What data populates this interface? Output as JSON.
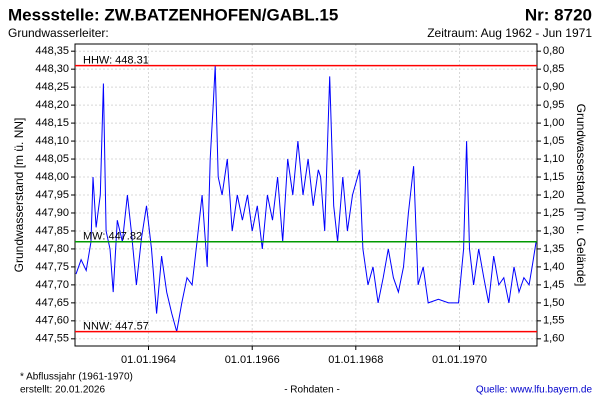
{
  "chart_data": {
    "type": "line",
    "title": "Messstelle: ZW.BATZENHOFEN/GABL.15",
    "number": "Nr: 8720",
    "subtitle": "Grundwasserleiter:",
    "period": "Zeitraum: Aug 1962 - Jun 1971",
    "ylabel": "Grundwasserstand [m ü. NN]",
    "y2label": "Grundwasserstand [m u. Gelände]",
    "footnote": "* Abflussjahr (1961-1970)",
    "created": "erstellt:  20.01.2026",
    "datatype": "- Rohdaten -",
    "source": "Quelle: www.lfu.bayern.de",
    "grid": true,
    "xlim": [
      "1962-08-01",
      "1971-07-01"
    ],
    "xticks": [
      {
        "value": "1964-01-01",
        "label": "01.01.1964"
      },
      {
        "value": "1966-01-01",
        "label": "01.01.1966"
      },
      {
        "value": "1968-01-01",
        "label": "01.01.1968"
      },
      {
        "value": "1970-01-01",
        "label": "01.01.1970"
      }
    ],
    "ylim": [
      447.53,
      448.37
    ],
    "yticks": [
      {
        "value": 447.55,
        "label": "447,55"
      },
      {
        "value": 447.6,
        "label": "447,60"
      },
      {
        "value": 447.65,
        "label": "447,65"
      },
      {
        "value": 447.7,
        "label": "447,70"
      },
      {
        "value": 447.75,
        "label": "447,75"
      },
      {
        "value": 447.8,
        "label": "447,80"
      },
      {
        "value": 447.85,
        "label": "447,85"
      },
      {
        "value": 447.9,
        "label": "447,90"
      },
      {
        "value": 447.95,
        "label": "447,95"
      },
      {
        "value": 448.0,
        "label": "448,00"
      },
      {
        "value": 448.05,
        "label": "448,05"
      },
      {
        "value": 448.1,
        "label": "448,10"
      },
      {
        "value": 448.15,
        "label": "448,15"
      },
      {
        "value": 448.2,
        "label": "448,20"
      },
      {
        "value": 448.25,
        "label": "448,25"
      },
      {
        "value": 448.3,
        "label": "448,30"
      },
      {
        "value": 448.35,
        "label": "448,35"
      }
    ],
    "y2lim": [
      1.62,
      0.78
    ],
    "y2ticks": [
      {
        "value": 1.6,
        "label": "1,60"
      },
      {
        "value": 1.55,
        "label": "1,55"
      },
      {
        "value": 1.5,
        "label": "1,50"
      },
      {
        "value": 1.45,
        "label": "1,45"
      },
      {
        "value": 1.4,
        "label": "1,40"
      },
      {
        "value": 1.35,
        "label": "1,35"
      },
      {
        "value": 1.3,
        "label": "1,30"
      },
      {
        "value": 1.25,
        "label": "1,25"
      },
      {
        "value": 1.2,
        "label": "1,20"
      },
      {
        "value": 1.15,
        "label": "1,15"
      },
      {
        "value": 1.1,
        "label": "1,10"
      },
      {
        "value": 1.05,
        "label": "1,05"
      },
      {
        "value": 1.0,
        "label": "1,00"
      },
      {
        "value": 0.95,
        "label": "0,95"
      },
      {
        "value": 0.9,
        "label": "0,90"
      },
      {
        "value": 0.85,
        "label": "0,85"
      },
      {
        "value": 0.8,
        "label": "0,80"
      }
    ],
    "reference_lines": [
      {
        "value": 448.31,
        "label": "HHW: 448.31",
        "color": "#ff0000"
      },
      {
        "value": 447.82,
        "label": "MW: 447.82",
        "color": "#009900"
      },
      {
        "value": 447.57,
        "label": "NNW: 447.57",
        "color": "#ff0000"
      }
    ],
    "x": [
      "1962-08-08",
      "1962-09-13",
      "1962-10-19",
      "1962-11-22",
      "1962-12-06",
      "1962-12-28",
      "1963-01-26",
      "1963-02-17",
      "1963-03-08",
      "1963-04-05",
      "1963-04-27",
      "1963-05-26",
      "1963-07-01",
      "1963-08-05",
      "1963-09-02",
      "1963-10-08",
      "1963-11-13",
      "1963-12-18",
      "1964-01-22",
      "1964-02-27",
      "1964-04-02",
      "1964-05-08",
      "1964-06-13",
      "1964-07-18",
      "1964-08-23",
      "1964-09-28",
      "1964-11-03",
      "1964-12-08",
      "1965-01-13",
      "1965-02-18",
      "1965-03-11",
      "1965-04-01",
      "1965-04-15",
      "1965-05-06",
      "1965-06-03",
      "1965-07-09",
      "1965-08-13",
      "1965-09-18",
      "1965-10-24",
      "1965-11-29",
      "1966-01-01",
      "1966-02-06",
      "1966-03-13",
      "1966-04-18",
      "1966-05-24",
      "1966-06-29",
      "1966-08-04",
      "1966-09-08",
      "1966-10-14",
      "1966-11-19",
      "1966-12-25",
      "1967-01-30",
      "1967-03-07",
      "1967-04-12",
      "1967-04-28",
      "1967-05-27",
      "1967-07-01",
      "1967-07-29",
      "1967-08-26",
      "1967-10-01",
      "1967-11-03",
      "1967-12-09",
      "1968-01-28",
      "1968-02-20",
      "1968-03-27",
      "1968-05-01",
      "1968-06-06",
      "1968-07-12",
      "1968-08-17",
      "1968-09-22",
      "1968-10-27",
      "1968-12-02",
      "1969-01-06",
      "1969-02-11",
      "1969-03-15",
      "1969-04-20",
      "1969-05-25",
      "1969-08-05",
      "1969-10-16",
      "1969-12-25",
      "1970-01-30",
      "1970-02-20",
      "1970-03-12",
      "1970-04-10",
      "1970-05-16",
      "1970-06-21",
      "1970-07-25",
      "1970-08-30",
      "1970-10-05",
      "1970-11-09",
      "1970-12-15",
      "1971-01-20",
      "1971-02-24",
      "1971-03-31",
      "1971-05-06",
      "1971-06-01",
      "1971-06-25"
    ],
    "series": [
      {
        "color": "#0000ff",
        "values": [
          447.73,
          447.77,
          447.74,
          447.82,
          448.0,
          447.86,
          447.95,
          448.26,
          447.85,
          447.8,
          447.68,
          447.88,
          447.82,
          447.95,
          447.85,
          447.7,
          447.83,
          447.92,
          447.8,
          447.62,
          447.78,
          447.68,
          447.62,
          447.57,
          447.65,
          447.72,
          447.7,
          447.82,
          447.95,
          447.75,
          448.05,
          448.2,
          448.31,
          448.0,
          447.95,
          448.05,
          447.85,
          447.95,
          447.88,
          447.95,
          447.85,
          447.92,
          447.8,
          447.95,
          447.88,
          448.0,
          447.82,
          448.05,
          447.95,
          448.1,
          447.95,
          448.05,
          447.92,
          448.02,
          448.0,
          447.85,
          448.28,
          447.92,
          447.82,
          448.0,
          447.85,
          447.95,
          448.02,
          447.8,
          447.7,
          447.75,
          447.65,
          447.72,
          447.8,
          447.72,
          447.68,
          447.75,
          447.9,
          448.03,
          447.7,
          447.75,
          447.65,
          447.66,
          447.65,
          447.65,
          447.8,
          448.1,
          447.8,
          447.7,
          447.8,
          447.72,
          447.65,
          447.78,
          447.7,
          447.72,
          447.65,
          447.75,
          447.68,
          447.72,
          447.7,
          447.76,
          447.82
        ]
      }
    ]
  }
}
